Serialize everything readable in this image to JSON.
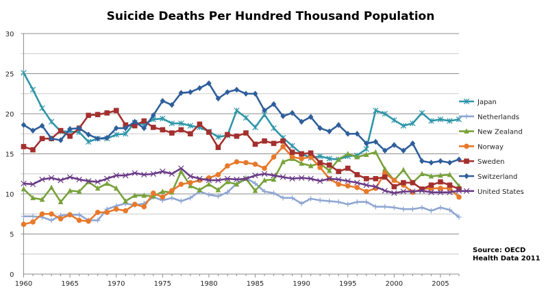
{
  "chart_data": {
    "type": "line",
    "title": "Suicide Deaths Per Hundred Thousand Population",
    "xlabel": "",
    "ylabel": "",
    "xlim": [
      1960,
      2007
    ],
    "ylim": [
      0,
      30
    ],
    "x_ticks": [
      "1960",
      "1965",
      "1970",
      "1975",
      "1980",
      "1985",
      "1990",
      "1995",
      "2000",
      "2005"
    ],
    "y_ticks": [
      "0",
      "5",
      "10",
      "15",
      "20",
      "25",
      "30"
    ],
    "grid": true,
    "legend_position": "right",
    "annotation": [
      "Source: OECD",
      "Health Data 2011"
    ],
    "x": [
      1960,
      1961,
      1962,
      1963,
      1964,
      1965,
      1966,
      1967,
      1968,
      1969,
      1970,
      1971,
      1972,
      1973,
      1974,
      1975,
      1976,
      1977,
      1978,
      1979,
      1980,
      1981,
      1982,
      1983,
      1984,
      1985,
      1986,
      1987,
      1988,
      1989,
      1990,
      1991,
      1992,
      1993,
      1994,
      1995,
      1996,
      1997,
      1998,
      1999,
      2000,
      2001,
      2002,
      2003,
      2004,
      2005,
      2006,
      2007
    ],
    "series": [
      {
        "name": "Japan",
        "color": "#2E95A8",
        "marker": "asterisk",
        "values": [
          25.1,
          23,
          20.7,
          19,
          17.8,
          17.8,
          17.7,
          16.5,
          16.9,
          16.9,
          17.4,
          17.5,
          18.9,
          18.7,
          19.3,
          19.4,
          18.8,
          18.8,
          18.5,
          18.3,
          17.8,
          17.1,
          17.3,
          20.4,
          19.5,
          18.3,
          19.9,
          18.2,
          17.0,
          16.0,
          15.0,
          14.5,
          14.7,
          14.4,
          14.3,
          14.7,
          14.8,
          15.6,
          20.4,
          20.0,
          19.2,
          18.5,
          18.8,
          20.1,
          19.1,
          19.3,
          19.1,
          19.3
        ]
      },
      {
        "name": "Netherlands",
        "color": "#8EA6D2",
        "marker": "plus",
        "values": [
          7.2,
          7.2,
          7.1,
          6.7,
          7.3,
          7.4,
          7.4,
          6.7,
          6.7,
          8.1,
          8.5,
          8.8,
          8.6,
          8.8,
          9.6,
          9.2,
          9.5,
          9.1,
          9.5,
          10.3,
          9.9,
          9.7,
          10.2,
          11.3,
          12.0,
          11.3,
          10.3,
          10.1,
          9.5,
          9.5,
          8.8,
          9.4,
          9.2,
          9.1,
          9.0,
          8.7,
          9.0,
          9.0,
          8.4,
          8.4,
          8.3,
          8.1,
          8.1,
          8.3,
          7.9,
          8.3,
          8.0,
          7.1
        ]
      },
      {
        "name": "New Zealand",
        "color": "#77A23A",
        "marker": "triangle",
        "values": [
          10.6,
          9.5,
          9.3,
          10.8,
          9.0,
          10.4,
          10.3,
          11.5,
          10.7,
          11.3,
          10.7,
          9.1,
          9.8,
          9.8,
          9.7,
          10.3,
          10.2,
          12.8,
          11.0,
          10.5,
          11.2,
          10.5,
          11.5,
          11.2,
          11.9,
          10.4,
          11.7,
          11.8,
          14.0,
          14.4,
          13.8,
          13.5,
          13.8,
          12.9,
          14.3,
          15.0,
          14.6,
          14.9,
          15.2,
          13.1,
          11.7,
          13.0,
          11.4,
          12.5,
          12.2,
          12.3,
          12.4,
          11.0
        ]
      },
      {
        "name": "Norway",
        "color": "#E7792B",
        "marker": "circle",
        "values": [
          6.2,
          6.5,
          7.5,
          7.5,
          6.9,
          7.4,
          6.7,
          6.6,
          7.7,
          7.7,
          8.1,
          7.9,
          8.7,
          8.4,
          10.1,
          9.6,
          10.4,
          11.2,
          11.4,
          11.7,
          12.0,
          12.4,
          13.5,
          14.0,
          13.9,
          13.7,
          13.2,
          14.6,
          15.9,
          14.6,
          14.4,
          14.6,
          13.3,
          11.9,
          11.2,
          11.0,
          10.8,
          10.3,
          10.7,
          12.6,
          11.7,
          11.1,
          10.2,
          10.6,
          10.7,
          10.7,
          10.7,
          9.6
        ]
      },
      {
        "name": "Sweden",
        "color": "#A3302E",
        "marker": "square",
        "values": [
          15.9,
          15.5,
          16.9,
          16.9,
          17.9,
          17.2,
          18.2,
          19.8,
          19.9,
          20.1,
          20.4,
          18.6,
          18.5,
          19.1,
          18.3,
          18.0,
          17.6,
          18.0,
          17.5,
          18.7,
          17.7,
          15.8,
          17.4,
          17.2,
          17.6,
          16.2,
          16.6,
          16.3,
          16.6,
          15.2,
          15.0,
          15.1,
          13.9,
          13.6,
          12.8,
          13.2,
          12.4,
          11.9,
          11.9,
          12.1,
          10.9,
          11.4,
          11.4,
          10.6,
          11.1,
          11.5,
          11.1,
          10.6
        ]
      },
      {
        "name": "Switzerland",
        "color": "#2E5E9B",
        "marker": "diamond",
        "values": [
          18.6,
          17.9,
          18.5,
          16.9,
          16.7,
          18.1,
          18.2,
          17.4,
          16.9,
          17.0,
          18.2,
          18.2,
          19.0,
          18.2,
          19.8,
          21.6,
          21.1,
          22.6,
          22.7,
          23.2,
          23.8,
          21.9,
          22.7,
          23.0,
          22.5,
          22.5,
          20.4,
          21.2,
          19.7,
          20.1,
          19.0,
          19.6,
          18.2,
          17.8,
          18.6,
          17.5,
          17.5,
          16.3,
          16.5,
          15.4,
          16.1,
          15.4,
          16.3,
          14.1,
          13.9,
          14.1,
          13.9,
          14.3
        ]
      },
      {
        "name": "United States",
        "color": "#6A3A86",
        "marker": "x",
        "values": [
          11.3,
          11.2,
          11.8,
          12.0,
          11.7,
          12.1,
          11.8,
          11.6,
          11.5,
          11.9,
          12.3,
          12.3,
          12.6,
          12.4,
          12.5,
          12.8,
          12.5,
          13.2,
          12.2,
          11.9,
          11.7,
          11.7,
          11.9,
          11.8,
          11.9,
          12.3,
          12.5,
          12.3,
          12.1,
          11.9,
          12.0,
          11.9,
          11.6,
          11.9,
          11.8,
          11.6,
          11.4,
          11.1,
          10.9,
          10.4,
          10.1,
          10.3,
          10.3,
          10.4,
          10.2,
          10.2,
          10.2,
          10.4
        ]
      }
    ]
  }
}
